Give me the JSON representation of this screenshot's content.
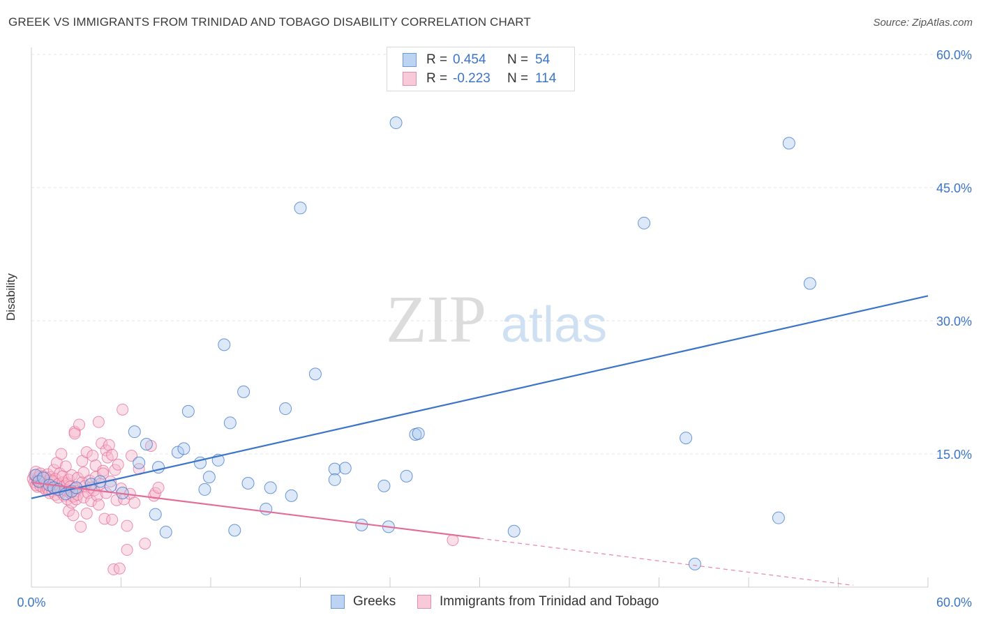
{
  "header": {
    "title": "GREEK VS IMMIGRANTS FROM TRINIDAD AND TOBAGO DISABILITY CORRELATION CHART",
    "source": "Source: ZipAtlas.com"
  },
  "legend": {
    "r_label": "R =",
    "n_label": "N =",
    "rows": [
      {
        "name": "Greeks",
        "r": "0.454",
        "n": "54"
      },
      {
        "name": "Immigrants from Trinidad and Tobago",
        "r": "-0.223",
        "n": "114"
      }
    ]
  },
  "watermark": {
    "zip": "ZIP",
    "atlas": "atlas"
  },
  "colors": {
    "blue": "#3b74c9",
    "blue_fill": "#a9c8ee",
    "pink": "#e46d97",
    "pink_fill": "#f6b8cb",
    "grid": "#e6e6e6"
  },
  "chart_data": {
    "type": "scatter",
    "xlabel": "",
    "ylabel": "Disability",
    "xlim": [
      0,
      60
    ],
    "ylim": [
      0,
      60
    ],
    "x_tick_labels": [
      "0.0%",
      "60.0%"
    ],
    "y_tick_labels": [
      "15.0%",
      "30.0%",
      "45.0%",
      "60.0%"
    ],
    "y_ticks": [
      15,
      30,
      45,
      60
    ],
    "series": [
      {
        "name": "Greeks",
        "trend": {
          "x": [
            0,
            60
          ],
          "y": [
            10.0,
            32.8
          ]
        },
        "points": [
          [
            0.3,
            12.6
          ],
          [
            0.5,
            11.9
          ],
          [
            0.8,
            12.3
          ],
          [
            1.2,
            11.5
          ],
          [
            1.5,
            11.2
          ],
          [
            1.8,
            11.0
          ],
          [
            2.3,
            10.5
          ],
          [
            2.7,
            10.8
          ],
          [
            3.0,
            11.2
          ],
          [
            4.0,
            11.6
          ],
          [
            4.6,
            11.9
          ],
          [
            5.3,
            11.4
          ],
          [
            6.1,
            10.6
          ],
          [
            6.9,
            17.5
          ],
          [
            7.2,
            14.0
          ],
          [
            7.7,
            16.1
          ],
          [
            8.3,
            8.2
          ],
          [
            8.5,
            13.5
          ],
          [
            9.0,
            6.2
          ],
          [
            9.8,
            15.2
          ],
          [
            10.2,
            15.6
          ],
          [
            10.5,
            19.8
          ],
          [
            11.3,
            14.0
          ],
          [
            11.6,
            11.0
          ],
          [
            11.9,
            12.4
          ],
          [
            12.5,
            14.3
          ],
          [
            12.9,
            27.3
          ],
          [
            13.3,
            18.5
          ],
          [
            13.6,
            6.4
          ],
          [
            14.2,
            22.0
          ],
          [
            14.5,
            11.7
          ],
          [
            15.7,
            8.8
          ],
          [
            16.0,
            11.2
          ],
          [
            17.0,
            20.1
          ],
          [
            17.4,
            10.3
          ],
          [
            18.0,
            42.7
          ],
          [
            19.0,
            24.0
          ],
          [
            20.3,
            13.3
          ],
          [
            20.3,
            12.1
          ],
          [
            21.0,
            13.4
          ],
          [
            22.1,
            7.0
          ],
          [
            23.6,
            11.4
          ],
          [
            23.9,
            6.8
          ],
          [
            24.4,
            52.3
          ],
          [
            25.1,
            12.5
          ],
          [
            25.7,
            17.2
          ],
          [
            25.9,
            17.3
          ],
          [
            32.3,
            6.3
          ],
          [
            41.0,
            41.0
          ],
          [
            43.8,
            16.8
          ],
          [
            44.4,
            2.6
          ],
          [
            50.0,
            7.8
          ],
          [
            50.7,
            50.0
          ],
          [
            52.1,
            34.2
          ]
        ]
      },
      {
        "name": "Immigrants from Trinidad and Tobago",
        "trend": {
          "x": [
            0,
            30
          ],
          "y": [
            11.8,
            5.5
          ]
        },
        "trend_ext": {
          "x": [
            30,
            55
          ],
          "y": [
            5.5,
            0.2
          ]
        },
        "points": [
          [
            0.1,
            12.2
          ],
          [
            0.2,
            11.8
          ],
          [
            0.2,
            12.6
          ],
          [
            0.3,
            11.5
          ],
          [
            0.3,
            13.0
          ],
          [
            0.4,
            12.0
          ],
          [
            0.4,
            11.3
          ],
          [
            0.5,
            12.4
          ],
          [
            0.5,
            11.9
          ],
          [
            0.6,
            12.8
          ],
          [
            0.6,
            11.4
          ],
          [
            0.7,
            12.1
          ],
          [
            0.7,
            11.7
          ],
          [
            0.8,
            12.5
          ],
          [
            0.8,
            11.2
          ],
          [
            0.9,
            11.9
          ],
          [
            0.9,
            12.3
          ],
          [
            1.0,
            10.9
          ],
          [
            1.0,
            11.6
          ],
          [
            1.1,
            12.7
          ],
          [
            1.1,
            11.1
          ],
          [
            1.2,
            12.0
          ],
          [
            1.2,
            10.6
          ],
          [
            1.3,
            11.8
          ],
          [
            1.3,
            12.4
          ],
          [
            1.4,
            11.3
          ],
          [
            1.4,
            10.8
          ],
          [
            1.5,
            13.2
          ],
          [
            1.5,
            11.9
          ],
          [
            1.6,
            10.4
          ],
          [
            1.6,
            12.2
          ],
          [
            1.7,
            11.0
          ],
          [
            1.7,
            14.0
          ],
          [
            1.8,
            11.6
          ],
          [
            1.8,
            10.1
          ],
          [
            1.9,
            12.8
          ],
          [
            1.9,
            11.2
          ],
          [
            2.0,
            10.7
          ],
          [
            2.0,
            15.0
          ],
          [
            2.1,
            11.8
          ],
          [
            2.1,
            12.5
          ],
          [
            2.2,
            10.3
          ],
          [
            2.2,
            11.4
          ],
          [
            2.3,
            13.6
          ],
          [
            2.3,
            10.9
          ],
          [
            2.4,
            11.7
          ],
          [
            2.4,
            9.9
          ],
          [
            2.5,
            12.1
          ],
          [
            2.5,
            8.6
          ],
          [
            2.6,
            10.6
          ],
          [
            2.6,
            11.3
          ],
          [
            2.7,
            12.6
          ],
          [
            2.7,
            9.5
          ],
          [
            2.8,
            10.2
          ],
          [
            2.8,
            8.1
          ],
          [
            2.9,
            11.1
          ],
          [
            2.9,
            17.5
          ],
          [
            3.0,
            10.8
          ],
          [
            3.0,
            9.9
          ],
          [
            3.1,
            12.3
          ],
          [
            3.1,
            10.4
          ],
          [
            3.2,
            18.3
          ],
          [
            3.3,
            6.8
          ],
          [
            3.4,
            11.8
          ],
          [
            3.4,
            14.2
          ],
          [
            3.5,
            10.1
          ],
          [
            3.5,
            12.9
          ],
          [
            3.6,
            11.4
          ],
          [
            3.7,
            8.3
          ],
          [
            3.7,
            15.2
          ],
          [
            3.8,
            10.6
          ],
          [
            3.9,
            12.0
          ],
          [
            4.0,
            9.7
          ],
          [
            4.0,
            11.2
          ],
          [
            4.1,
            14.8
          ],
          [
            4.2,
            10.9
          ],
          [
            4.3,
            13.7
          ],
          [
            4.3,
            12.4
          ],
          [
            4.4,
            10.3
          ],
          [
            4.5,
            18.6
          ],
          [
            4.5,
            9.3
          ],
          [
            4.6,
            11.6
          ],
          [
            4.7,
            16.2
          ],
          [
            4.8,
            13.1
          ],
          [
            4.8,
            12.8
          ],
          [
            4.9,
            7.7
          ],
          [
            5.0,
            15.4
          ],
          [
            5.0,
            10.6
          ],
          [
            5.1,
            14.6
          ],
          [
            5.2,
            16.0
          ],
          [
            5.3,
            11.9
          ],
          [
            5.4,
            7.6
          ],
          [
            5.4,
            14.9
          ],
          [
            5.5,
            2.0
          ],
          [
            5.6,
            13.2
          ],
          [
            5.7,
            9.8
          ],
          [
            5.8,
            13.8
          ],
          [
            5.9,
            2.1
          ],
          [
            6.0,
            11.1
          ],
          [
            6.1,
            20.0
          ],
          [
            6.2,
            9.9
          ],
          [
            6.4,
            6.9
          ],
          [
            6.4,
            4.2
          ],
          [
            6.6,
            10.5
          ],
          [
            6.7,
            14.8
          ],
          [
            6.9,
            9.5
          ],
          [
            7.2,
            13.3
          ],
          [
            7.6,
            4.9
          ],
          [
            8.0,
            15.9
          ],
          [
            8.2,
            10.3
          ],
          [
            8.3,
            10.6
          ],
          [
            8.5,
            11.2
          ],
          [
            2.9,
            17.3
          ],
          [
            28.2,
            5.3
          ]
        ]
      }
    ]
  }
}
